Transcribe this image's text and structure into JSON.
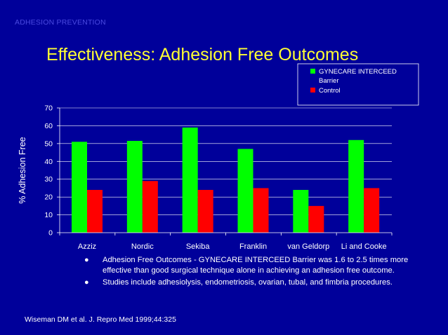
{
  "header": {
    "tag": "ADHESION PREVENTION"
  },
  "slide_title": "Effectiveness:  Adhesion Free Outcomes",
  "colors": {
    "background": "#00009a",
    "title": "#ffff33",
    "series_1": "#00ff00",
    "series_2": "#ff0000",
    "axis": "#ffffff",
    "header_tag": "#4a4ae0"
  },
  "chart_data": {
    "type": "bar",
    "categories": [
      "Azziz",
      "Nordic",
      "Sekiba",
      "Franklin",
      "van Geldorp",
      "Li and Cooke"
    ],
    "series": [
      {
        "name": "GYNECARE INTERCEED Barrier",
        "values": [
          51,
          51.5,
          59,
          47,
          24,
          52
        ]
      },
      {
        "name": "Control",
        "values": [
          24,
          29,
          24,
          25,
          15,
          25
        ]
      }
    ],
    "ylabel": "% Adhesion Free",
    "xlabel": "",
    "ylim": [
      0,
      70
    ],
    "yticks": [
      0,
      10,
      20,
      30,
      40,
      50,
      60,
      70
    ],
    "grid": true,
    "legend_position": "top-right"
  },
  "bullets": [
    "Adhesion Free Outcomes - GYNECARE INTERCEED Barrier was 1.6 to 2.5 times more effective than good surgical technique alone in achieving an adhesion free outcome.",
    "Studies include adhesiolysis, endometriosis, ovarian, tubal, and fimbria procedures."
  ],
  "bullet_icon": "bullet-dot",
  "citation": "Wiseman DM et al.  J. Repro Med 1999;44:325"
}
